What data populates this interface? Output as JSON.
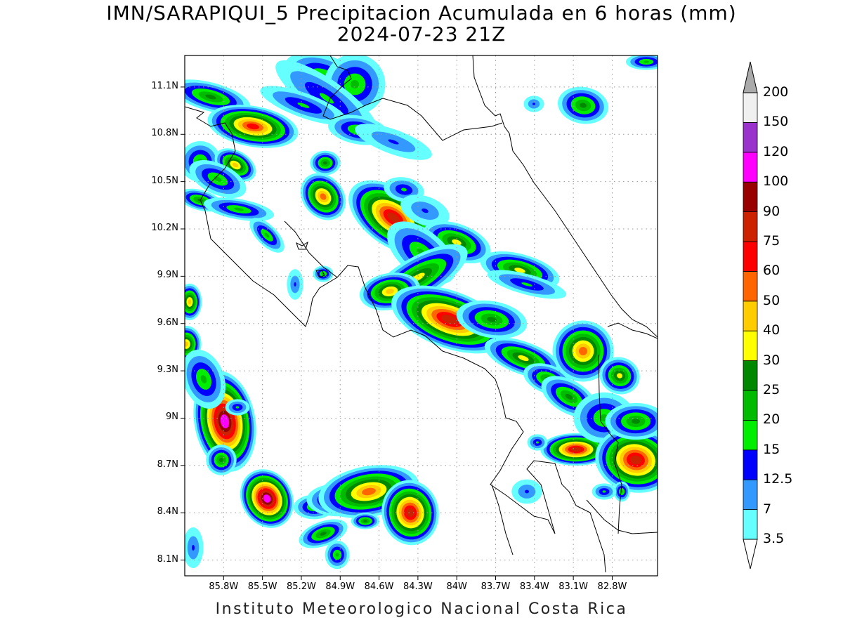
{
  "header": {
    "title_line1": "IMN/SARAPIQUI_5 Precipitacion Acumulada en 6 horas (mm)",
    "title_line2": "2024-07-23 21Z"
  },
  "footer": {
    "credit": "Instituto Meteorologico Nacional Costa Rica"
  },
  "axes": {
    "lat_ticks": [
      "11.1N",
      "10.8N",
      "10.5N",
      "10.2N",
      "9.9N",
      "9.6N",
      "9.3N",
      "9N",
      "8.7N",
      "8.4N",
      "8.1N"
    ],
    "lat_values": [
      11.1,
      10.8,
      10.5,
      10.2,
      9.9,
      9.6,
      9.3,
      9.0,
      8.7,
      8.4,
      8.1
    ],
    "lon_ticks": [
      "85.8W",
      "85.5W",
      "85.2W",
      "84.9W",
      "84.6W",
      "84.3W",
      "84W",
      "83.7W",
      "83.4W",
      "83.1W",
      "82.8W"
    ],
    "lon_values": [
      -85.8,
      -85.5,
      -85.2,
      -84.9,
      -84.6,
      -84.3,
      -84.0,
      -83.7,
      -83.4,
      -83.1,
      -82.8
    ],
    "lon_range": [
      -86.1,
      -82.45
    ],
    "lat_range": [
      8.0,
      11.3
    ],
    "grid": "dotted"
  },
  "colorbar": {
    "labels": [
      "3.5",
      "7",
      "12.5",
      "15",
      "20",
      "25",
      "30",
      "40",
      "50",
      "60",
      "75",
      "90",
      "100",
      "120",
      "150",
      "200"
    ],
    "colors": [
      "#66ffff",
      "#3399ff",
      "#0000ff",
      "#00ee00",
      "#00bb00",
      "#008800",
      "#ffff00",
      "#ffcc00",
      "#ff6600",
      "#ff0000",
      "#cc2200",
      "#990000",
      "#ff00ff",
      "#9933cc",
      "#f0f0f0"
    ],
    "over_color": "#aaaaaa",
    "under_color": "#ffffff"
  }
}
